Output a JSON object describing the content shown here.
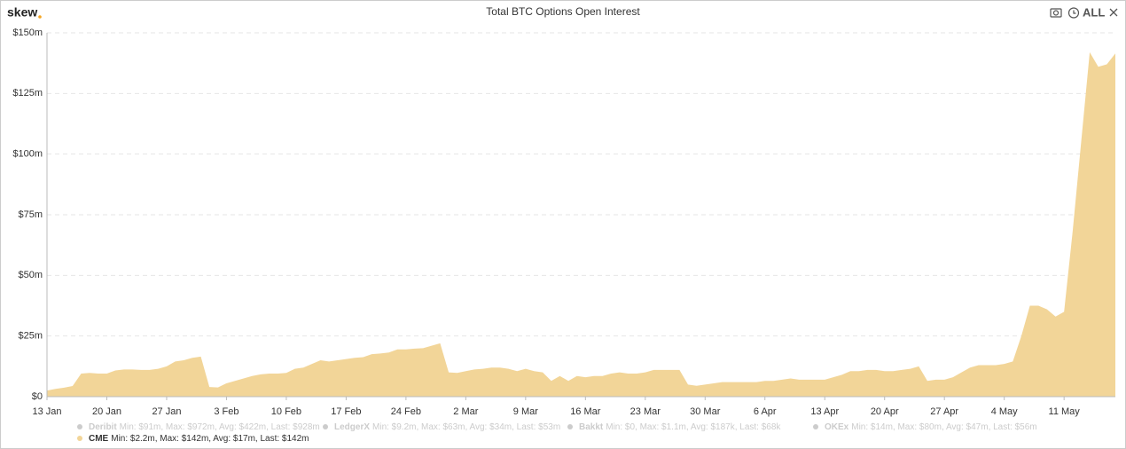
{
  "toolbar": {
    "logo": "skew",
    "range": "ALL"
  },
  "chart_data": {
    "type": "area",
    "title": "Total BTC Options Open Interest",
    "categories": [
      "13 Jan",
      null,
      null,
      null,
      null,
      null,
      null,
      "20 Jan",
      null,
      null,
      null,
      null,
      null,
      null,
      "27 Jan",
      null,
      null,
      null,
      null,
      null,
      null,
      "3 Feb",
      null,
      null,
      null,
      null,
      null,
      null,
      "10 Feb",
      null,
      null,
      null,
      null,
      null,
      null,
      "17 Feb",
      null,
      null,
      null,
      null,
      null,
      null,
      "24 Feb",
      null,
      null,
      null,
      null,
      null,
      null,
      "2 Mar",
      null,
      null,
      null,
      null,
      null,
      null,
      "9 Mar",
      null,
      null,
      null,
      null,
      null,
      null,
      "16 Mar",
      null,
      null,
      null,
      null,
      null,
      null,
      "23 Mar",
      null,
      null,
      null,
      null,
      null,
      null,
      "30 Mar",
      null,
      null,
      null,
      null,
      null,
      null,
      "6 Apr",
      null,
      null,
      null,
      null,
      null,
      null,
      "13 Apr",
      null,
      null,
      null,
      null,
      null,
      null,
      "20 Apr",
      null,
      null,
      null,
      null,
      null,
      null,
      "27 Apr",
      null,
      null,
      null,
      null,
      null,
      null,
      "4 May",
      null,
      null,
      null,
      null,
      null,
      null,
      "11 May",
      null,
      null,
      null,
      null,
      null,
      null
    ],
    "series": [
      {
        "name": "CME",
        "color": "#f2d598",
        "stats": "Min: $2.2m, Max: $142m, Avg: $17m, Last: $142m",
        "values": [
          2.5,
          3.2,
          3.7,
          4.4,
          9.5,
          9.8,
          9.5,
          9.5,
          10.8,
          11.2,
          11.2,
          11,
          11,
          11.5,
          12.5,
          14.5,
          15,
          16,
          16.5,
          4,
          3.8,
          5.5,
          6.5,
          7.5,
          8.5,
          9.2,
          9.5,
          9.5,
          9.8,
          11.5,
          12,
          13.5,
          15,
          14.5,
          15,
          15.5,
          16,
          16.3,
          17.5,
          17.8,
          18.2,
          19.5,
          19.5,
          19.8,
          20,
          21,
          22,
          10,
          9.8,
          10.5,
          11.2,
          11.5,
          12,
          12,
          11.5,
          10.5,
          11.5,
          10.5,
          10,
          6.5,
          8.5,
          6.5,
          8.5,
          8,
          8.5,
          8.5,
          9.5,
          10,
          9.5,
          9.5,
          10,
          11,
          11,
          11,
          11,
          5,
          4.5,
          5,
          5.5,
          6,
          6,
          6,
          6,
          6,
          6.5,
          6.5,
          7,
          7.5,
          7,
          7,
          7,
          7,
          8,
          9,
          10.5,
          10.5,
          11,
          11,
          10.5,
          10.5,
          11,
          11.5,
          12.5,
          6.5,
          7,
          7,
          8,
          10,
          12,
          13,
          13,
          13,
          13.5,
          14.5,
          25,
          37.5,
          37.5,
          36,
          33,
          35,
          68,
          105,
          142,
          136,
          137,
          141.5
        ]
      }
    ],
    "hidden_series": [
      {
        "name": "Deribit",
        "stats": "Min: $91m, Max: $972m, Avg: $422m, Last: $928m"
      },
      {
        "name": "LedgerX",
        "stats": "Min: $9.2m, Max: $63m, Avg: $34m, Last: $53m"
      },
      {
        "name": "Bakkt",
        "stats": "Min: $0, Max: $1.1m, Avg: $187k, Last: $68k"
      },
      {
        "name": "OKEx",
        "stats": "Min: $14m, Max: $80m, Avg: $47m, Last: $56m"
      }
    ],
    "ylim": [
      0,
      150
    ],
    "yticks": [
      {
        "value": 0,
        "label": "$0"
      },
      {
        "value": 25,
        "label": "$25m"
      },
      {
        "value": 50,
        "label": "$50m"
      },
      {
        "value": 75,
        "label": "$75m"
      },
      {
        "value": 100,
        "label": "$100m"
      },
      {
        "value": 125,
        "label": "$125m"
      },
      {
        "value": 150,
        "label": "$150m"
      }
    ],
    "grid": true
  }
}
